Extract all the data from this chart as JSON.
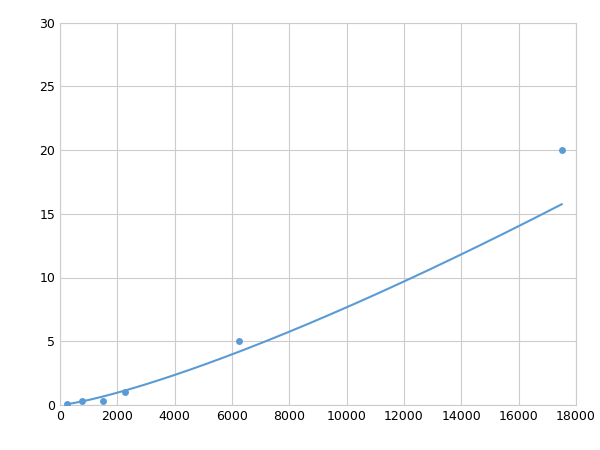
{
  "x_points": [
    250,
    750,
    1500,
    2250,
    6250,
    17500
  ],
  "y_points": [
    0.1,
    0.3,
    0.3,
    1.0,
    5.0,
    20.0
  ],
  "line_color": "#5b9bd5",
  "marker_color": "#5b9bd5",
  "marker_size": 5,
  "linewidth": 1.5,
  "xlim": [
    0,
    18000
  ],
  "ylim": [
    0,
    30
  ],
  "xticks": [
    0,
    2000,
    4000,
    6000,
    8000,
    10000,
    12000,
    14000,
    16000,
    18000
  ],
  "yticks": [
    0,
    5,
    10,
    15,
    20,
    25,
    30
  ],
  "grid_color": "#cccccc",
  "background_color": "#ffffff",
  "tick_fontsize": 9
}
